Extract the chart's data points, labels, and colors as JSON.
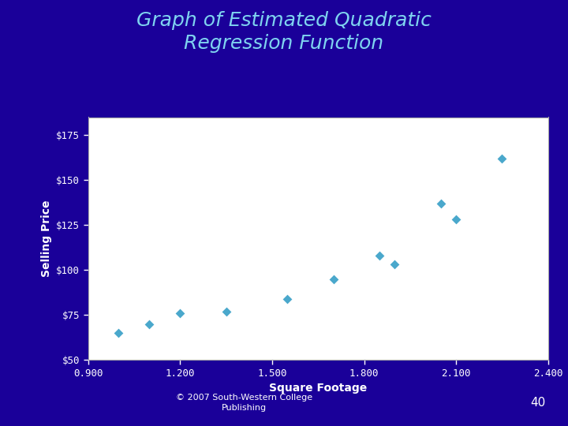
{
  "title": "Graph of Estimated Quadratic\nRegression Function",
  "xlabel": "Square Footage",
  "ylabel": "Selling Price",
  "background_color": "#1a0099",
  "plot_bg_color": "#ffffff",
  "title_color": "#7fd4f0",
  "axis_label_color": "#ffffff",
  "tick_label_color": "#ffffff",
  "point_color": "#4aa8cc",
  "scatter_x": [
    1000,
    1100,
    1200,
    1350,
    1550,
    1700,
    1850,
    1900,
    2050,
    2100,
    2250
  ],
  "scatter_y": [
    65,
    70,
    76,
    77,
    84,
    95,
    108,
    103,
    137,
    128,
    162
  ],
  "xlim": [
    0.9,
    2.4
  ],
  "ylim": [
    50,
    185
  ],
  "xticks": [
    0.9,
    1.2,
    1.5,
    1.8,
    2.1,
    2.4
  ],
  "yticks": [
    50,
    75,
    100,
    125,
    150,
    175
  ],
  "xtick_labels": [
    "0.900",
    "1.200",
    "1.500",
    "1.800",
    "2.100",
    "2.400"
  ],
  "ytick_labels": [
    "$50",
    "$75",
    "$100",
    "$125",
    "$150",
    "$175"
  ],
  "copyright_text": "© 2007 South-Western College\nPublishing",
  "page_number": "40",
  "title_fontsize": 18,
  "axis_label_fontsize": 10,
  "tick_fontsize": 9,
  "copyright_fontsize": 8,
  "marker_size": 6
}
